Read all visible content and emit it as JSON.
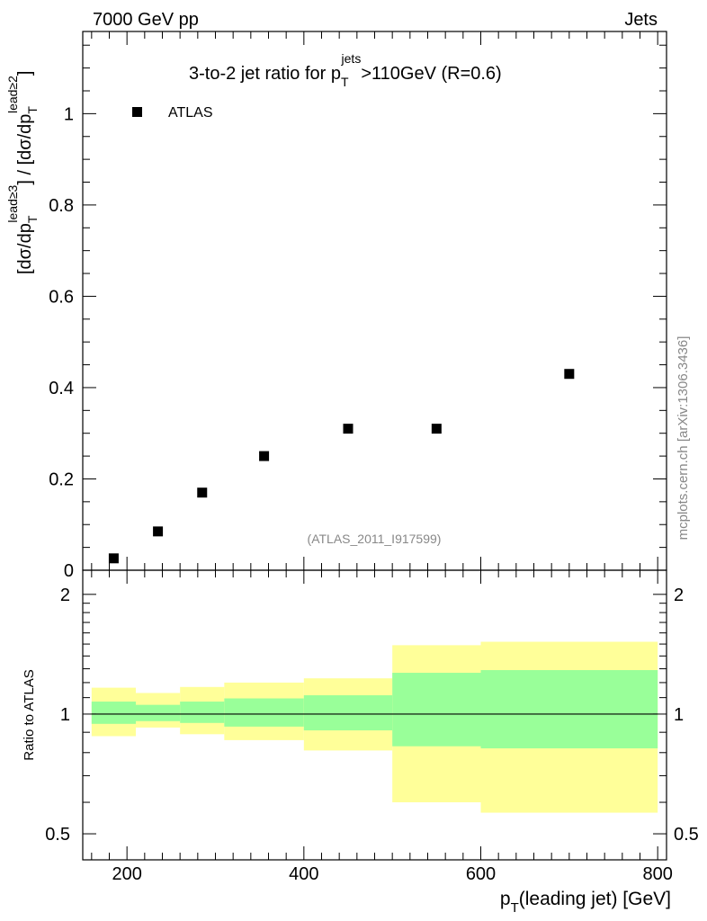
{
  "header": {
    "left": "7000 GeV pp",
    "right": "Jets"
  },
  "side_label": "mcplots.cern.ch [arXiv:1306.3436]",
  "chart_data": [
    {
      "type": "scatter",
      "title_parts": {
        "prefix": "3-to-2 jet ratio for p",
        "sub": "T",
        "sup": "jets",
        "suffix": ">110GeV (R=0.6)"
      },
      "legend": [
        "ATLAS"
      ],
      "legend_placement": "top-left",
      "ylabel_parts": {
        "a": "[dσ/dp",
        "a_sub": "T",
        "a_sup": "lead≥3",
        "b": "] / [dσ/dp",
        "b_sub": "T",
        "b_sup": "lead≥2",
        "c": "]"
      },
      "analysis_label": "(ATLAS_2011_I917599)",
      "xlim": [
        150,
        810
      ],
      "ylim": [
        0,
        1.18
      ],
      "yticks": [
        0,
        0.2,
        0.4,
        0.6,
        0.8,
        1
      ],
      "ytick_labels": [
        "0",
        "0.2",
        "0.4",
        "0.6",
        "0.8",
        "1"
      ],
      "x": [
        185,
        235,
        285,
        355,
        450,
        550,
        700
      ],
      "y": [
        0.026,
        0.085,
        0.17,
        0.25,
        0.31,
        0.31,
        0.43
      ]
    },
    {
      "type": "area",
      "ylabel": "Ratio to ATLAS",
      "xlabel_parts": {
        "a": "p",
        "a_sub": "T",
        "b": "(leading jet) [GeV]"
      },
      "xlim": [
        150,
        810
      ],
      "ylim": [
        0.43,
        2.3
      ],
      "yticks": [
        0.5,
        1,
        2
      ],
      "ytick_labels": [
        "0.5",
        "1",
        "2"
      ],
      "xticks": [
        200,
        400,
        600,
        800
      ],
      "xtick_labels": [
        "200",
        "400",
        "600",
        "800"
      ],
      "reference_line": 1,
      "bins": [
        {
          "lo": 160,
          "hi": 210,
          "inner": [
            0.945,
            1.075
          ],
          "outer": [
            0.88,
            1.165
          ]
        },
        {
          "lo": 210,
          "hi": 260,
          "inner": [
            0.96,
            1.055
          ],
          "outer": [
            0.925,
            1.13
          ]
        },
        {
          "lo": 260,
          "hi": 310,
          "inner": [
            0.95,
            1.075
          ],
          "outer": [
            0.89,
            1.17
          ]
        },
        {
          "lo": 310,
          "hi": 400,
          "inner": [
            0.93,
            1.095
          ],
          "outer": [
            0.86,
            1.2
          ]
        },
        {
          "lo": 400,
          "hi": 500,
          "inner": [
            0.91,
            1.115
          ],
          "outer": [
            0.81,
            1.23
          ]
        },
        {
          "lo": 500,
          "hi": 600,
          "inner": [
            0.83,
            1.27
          ],
          "outer": [
            0.6,
            1.49
          ]
        },
        {
          "lo": 600,
          "hi": 800,
          "inner": [
            0.82,
            1.29
          ],
          "outer": [
            0.565,
            1.52
          ]
        }
      ],
      "colors": {
        "inner": "#99ff99",
        "outer": "#ffff99",
        "line": "#000000"
      }
    }
  ]
}
